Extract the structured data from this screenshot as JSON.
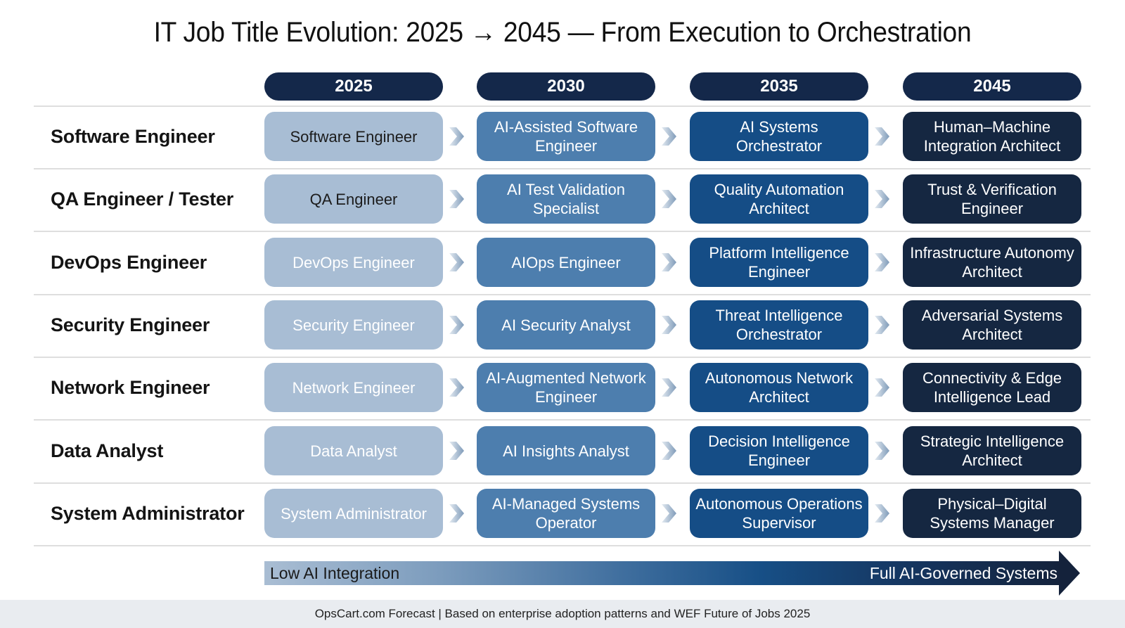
{
  "title": "IT Job Title Evolution: 2025 → 2045 — From Execution to Orchestration",
  "years": [
    "2025",
    "2030",
    "2035",
    "2045"
  ],
  "colors": {
    "header": "#14284a",
    "stage_2025": "#a8bdd4",
    "stage_2030": "#4d7eae",
    "stage_2035": "#154d86",
    "stage_2045": "#152741"
  },
  "rows": [
    {
      "label": "Software Engineer",
      "stages": [
        "Software Engineer",
        "AI-Assisted Software Engineer",
        "AI Systems Orchestrator",
        "Human–Machine Integration Architect"
      ]
    },
    {
      "label": "QA Engineer / Tester",
      "stages": [
        "QA Engineer",
        "AI Test Validation Specialist",
        "Quality Automation Architect",
        "Trust & Verification Engineer"
      ]
    },
    {
      "label": "DevOps Engineer",
      "stages": [
        "DevOps Engineer",
        "AIOps Engineer",
        "Platform Intelligence Engineer",
        "Infrastructure Autonomy Architect"
      ]
    },
    {
      "label": "Security Engineer",
      "stages": [
        "Security Engineer",
        "AI Security Analyst",
        "Threat Intelligence Orchestrator",
        "Adversarial Systems Architect"
      ]
    },
    {
      "label": "Network Engineer",
      "stages": [
        "Network Engineer",
        "AI-Augmented Network Engineer",
        "Autonomous Network Architect",
        "Connectivity & Edge Intelligence Lead"
      ]
    },
    {
      "label": "Data Analyst",
      "stages": [
        "Data Analyst",
        "AI Insights Analyst",
        "Decision Intelligence Engineer",
        "Strategic Intelligence Architect"
      ]
    },
    {
      "label": "System Administrator",
      "stages": [
        "System Administrator",
        "AI-Managed Systems Operator",
        "Autonomous Operations Supervisor",
        "Physical–Digital Systems Manager"
      ]
    }
  ],
  "scale": {
    "low_label": "Low AI Integration",
    "high_label": "Full AI-Governed Systems"
  },
  "footer": "OpsCart.com Forecast | Based on enterprise adoption patterns and WEF Future of Jobs 2025",
  "icons": {
    "transition": "chevron-right-icon",
    "scale": "arrow-right-icon"
  }
}
